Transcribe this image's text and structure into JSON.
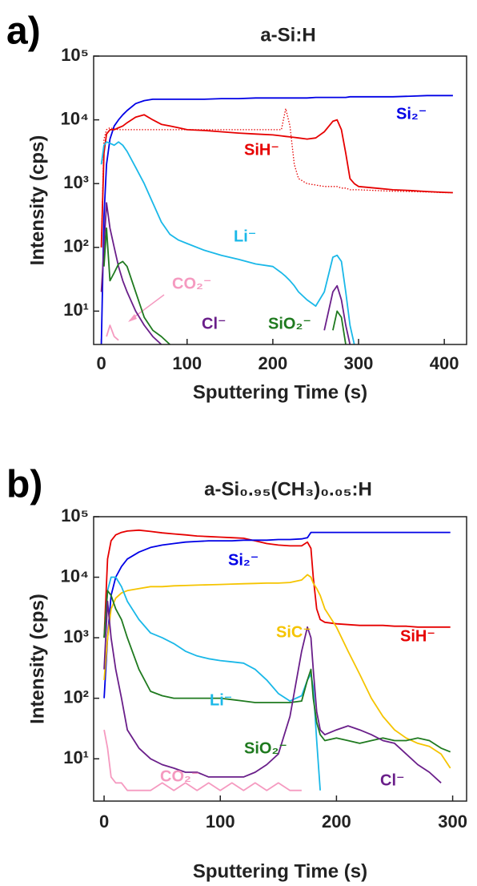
{
  "chart_data": [
    {
      "type": "line",
      "panel_label": "a)",
      "title": "a-Si:H",
      "xlabel": "Sputtering Time (s)",
      "ylabel": "Intensity (cps)",
      "log_y": true,
      "xlim": [
        -9,
        426
      ],
      "xticks": [
        0,
        100,
        200,
        300,
        400
      ],
      "ylim": [
        3,
        100000
      ],
      "yticks": [
        {
          "value": 10,
          "label": "10¹"
        },
        {
          "value": 100,
          "label": "10²"
        },
        {
          "value": 1000,
          "label": "10³"
        },
        {
          "value": 10000,
          "label": "10⁴"
        },
        {
          "value": 100000,
          "label": "10⁵"
        }
      ],
      "x": [
        0,
        3,
        6,
        10,
        15,
        20,
        25,
        30,
        40,
        50,
        60,
        70,
        80,
        90,
        100,
        120,
        140,
        160,
        180,
        200,
        210,
        215,
        220,
        225,
        230,
        240,
        250,
        260,
        270,
        275,
        280,
        285,
        290,
        295,
        300,
        320,
        340,
        360,
        380,
        400,
        410
      ],
      "series": [
        {
          "name": "Si₂⁻",
          "color": "#0000e6",
          "values": [
            3,
            300,
            2000,
            5000,
            8000,
            10000,
            12000,
            14000,
            18000,
            20000,
            21000,
            21000,
            21000,
            21000,
            21000,
            21000,
            21500,
            21500,
            22000,
            22000,
            22000,
            22000,
            22000,
            22000,
            22000,
            22000,
            22500,
            22500,
            22500,
            22500,
            22500,
            22500,
            23000,
            23000,
            23000,
            23000,
            23000,
            23500,
            24000,
            24000,
            24000
          ]
        },
        {
          "name": "SiH⁻",
          "color": "#e60000",
          "values": [
            100,
            3000,
            6000,
            7000,
            7000,
            7500,
            8000,
            9000,
            11000,
            12000,
            10000,
            8500,
            8000,
            7500,
            7000,
            6800,
            6500,
            6200,
            6000,
            5800,
            5600,
            5500,
            5400,
            5300,
            5200,
            5000,
            5200,
            6500,
            9500,
            10000,
            7000,
            3000,
            1200,
            1000,
            900,
            850,
            800,
            780,
            750,
            730,
            720
          ]
        },
        {
          "color": "#e60000",
          "dash": "dotted",
          "values": [
            100,
            5000,
            7000,
            7500,
            7200,
            7000,
            7000,
            7000,
            7000,
            7000,
            7000,
            7000,
            7000,
            7000,
            7000,
            7000,
            7000,
            7000,
            7000,
            7000,
            7000,
            15000,
            8000,
            2000,
            1200,
            1000,
            950,
            900,
            900,
            900,
            850,
            850,
            800,
            800,
            800,
            780,
            760,
            750,
            740,
            720,
            720
          ]
        },
        {
          "name": "Li⁻",
          "color": "#1ab8e8",
          "values": [
            2000,
            4000,
            4500,
            4300,
            4000,
            4500,
            4000,
            3200,
            1800,
            1000,
            500,
            250,
            160,
            130,
            115,
            90,
            75,
            65,
            55,
            50,
            40,
            35,
            30,
            25,
            20,
            15,
            12,
            20,
            70,
            75,
            60,
            20,
            6,
            3,
            null,
            null,
            null,
            null,
            null,
            null,
            null
          ]
        },
        {
          "name": "CO₂⁻",
          "color": "#f59ac0",
          "values": [
            null,
            null,
            4,
            6,
            4,
            3.5,
            null,
            null,
            null,
            null,
            null,
            null,
            null,
            null,
            null,
            null,
            null,
            null,
            null,
            null,
            null,
            null,
            null,
            null,
            null,
            null,
            null,
            null,
            null,
            null,
            null,
            null,
            null,
            null,
            null,
            null,
            null,
            null,
            null,
            null,
            null
          ]
        },
        {
          "name": "Cl⁻",
          "color": "#6a1f8a",
          "values": [
            20,
            100,
            500,
            200,
            100,
            50,
            30,
            20,
            10,
            6,
            4,
            3,
            null,
            null,
            null,
            null,
            null,
            null,
            null,
            null,
            null,
            null,
            null,
            null,
            null,
            null,
            null,
            5,
            20,
            25,
            15,
            6,
            3,
            null,
            null,
            null,
            null,
            null,
            null,
            null,
            null
          ]
        },
        {
          "name": "SiO₂⁻",
          "color": "#1f7a1f",
          "values": [
            null,
            50,
            200,
            30,
            40,
            55,
            60,
            50,
            20,
            8,
            5,
            4,
            3,
            null,
            null,
            null,
            null,
            null,
            null,
            null,
            null,
            null,
            null,
            null,
            null,
            null,
            null,
            null,
            5,
            10,
            8,
            3,
            null,
            null,
            null,
            null,
            null,
            null,
            null,
            null,
            null
          ]
        }
      ]
    },
    {
      "type": "line",
      "panel_label": "b)",
      "title": "a-Si₀.₉₅(CH₃)₀.₀₅:H",
      "xlabel": "Sputtering Time (s)",
      "ylabel": "Intensity (cps)",
      "log_y": true,
      "xlim": [
        -9,
        312
      ],
      "xticks": [
        0,
        100,
        200,
        300
      ],
      "ylim": [
        2,
        100000
      ],
      "yticks": [
        {
          "value": 10,
          "label": "10¹"
        },
        {
          "value": 100,
          "label": "10²"
        },
        {
          "value": 1000,
          "label": "10³"
        },
        {
          "value": 10000,
          "label": "10⁴"
        },
        {
          "value": 100000,
          "label": "10⁵"
        }
      ],
      "x": [
        0,
        3,
        6,
        10,
        15,
        20,
        30,
        40,
        50,
        60,
        70,
        80,
        90,
        100,
        110,
        120,
        130,
        140,
        150,
        160,
        170,
        175,
        178,
        180,
        183,
        186,
        190,
        200,
        210,
        220,
        230,
        240,
        250,
        260,
        270,
        280,
        290,
        298
      ],
      "series": [
        {
          "name": "SiH⁻",
          "color": "#e60000",
          "values": [
            1000,
            20000,
            40000,
            50000,
            55000,
            58000,
            60000,
            57000,
            54000,
            52000,
            50000,
            48000,
            47000,
            46000,
            45000,
            44000,
            40000,
            36000,
            34000,
            33000,
            33000,
            38000,
            30000,
            10000,
            3000,
            2000,
            1800,
            1700,
            1650,
            1600,
            1600,
            1600,
            1550,
            1550,
            1500,
            1500,
            1500,
            1500
          ]
        },
        {
          "name": "Si₂⁻",
          "color": "#0000e6",
          "values": [
            100,
            1000,
            5000,
            10000,
            15000,
            20000,
            26000,
            31000,
            34000,
            36000,
            38000,
            39000,
            40000,
            40000,
            40000,
            41000,
            41000,
            41000,
            42000,
            42000,
            43000,
            45000,
            55000,
            55000,
            55000,
            55000,
            55000,
            55000,
            55000,
            55000,
            55000,
            55000,
            55000,
            55000,
            55000,
            55000,
            55000,
            55000
          ]
        },
        {
          "name": "SiC⁻",
          "color": "#f5c400",
          "values": [
            200,
            1000,
            3000,
            4500,
            5500,
            6000,
            6500,
            7000,
            7000,
            7200,
            7300,
            7400,
            7500,
            7600,
            7700,
            7800,
            7900,
            8000,
            8000,
            8200,
            9000,
            11000,
            10000,
            8000,
            6500,
            5000,
            3000,
            1500,
            600,
            250,
            100,
            50,
            30,
            22,
            18,
            16,
            12,
            7
          ]
        },
        {
          "name": "Li⁻",
          "color": "#1ab8e8",
          "values": [
            1000,
            6000,
            10000,
            10000,
            7000,
            4000,
            2000,
            1200,
            1000,
            800,
            600,
            500,
            450,
            420,
            400,
            380,
            300,
            200,
            120,
            90,
            110,
            200,
            250,
            150,
            20,
            3,
            null,
            null,
            null,
            null,
            null,
            null,
            null,
            null,
            null,
            null,
            null,
            null
          ]
        },
        {
          "name": "SiO₂⁻",
          "color": "#1f7a1f",
          "values": [
            1000,
            6000,
            5000,
            3000,
            2000,
            1000,
            300,
            130,
            110,
            100,
            100,
            100,
            100,
            100,
            95,
            90,
            85,
            85,
            85,
            85,
            90,
            200,
            300,
            100,
            40,
            25,
            20,
            22,
            20,
            18,
            20,
            22,
            20,
            20,
            22,
            20,
            15,
            13
          ]
        },
        {
          "name": "CO₂⁻",
          "color": "#f59ac0",
          "values": [
            30,
            15,
            5,
            4,
            4,
            3,
            3,
            3,
            4,
            3,
            4,
            3,
            4,
            3,
            4,
            3,
            4,
            3,
            4,
            3,
            3,
            null,
            null,
            null,
            null,
            null,
            null,
            null,
            null,
            null,
            null,
            null,
            null,
            null,
            null,
            null,
            null,
            null
          ]
        },
        {
          "name": "Cl⁻",
          "color": "#6a1f8a",
          "values": [
            300,
            4000,
            1000,
            300,
            100,
            30,
            15,
            10,
            8,
            7,
            6,
            6,
            5,
            5,
            5,
            5,
            6,
            8,
            12,
            50,
            600,
            1500,
            1000,
            300,
            60,
            30,
            25,
            30,
            35,
            30,
            25,
            20,
            18,
            12,
            8,
            6,
            4,
            null
          ]
        }
      ]
    }
  ]
}
